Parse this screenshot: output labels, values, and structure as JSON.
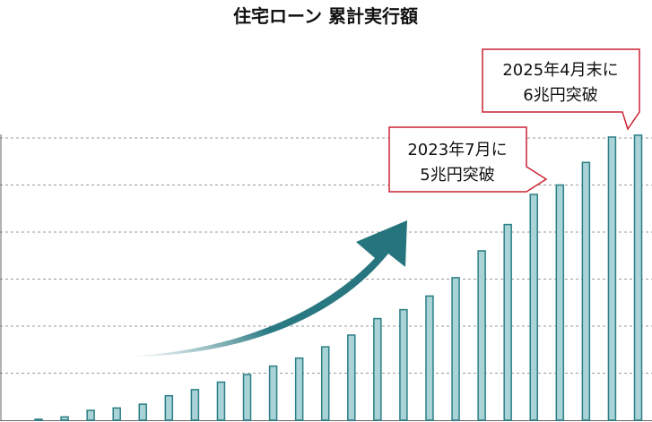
{
  "chart_data": {
    "type": "bar",
    "title": "住宅ローン 累計実行額",
    "xlabel": "",
    "ylabel": "",
    "ylim": [
      0,
      6
    ],
    "grid": true,
    "values": [
      0.02,
      0.07,
      0.21,
      0.26,
      0.34,
      0.52,
      0.65,
      0.81,
      0.97,
      1.15,
      1.32,
      1.56,
      1.81,
      2.16,
      2.35,
      2.64,
      3.03,
      3.6,
      4.16,
      4.8,
      5.0,
      5.48,
      6.02,
      6.06
    ],
    "annotations": [
      {
        "label": "callout_2023",
        "line1": "2023年7月に",
        "line2": "5兆円突破",
        "bar_index": 20
      },
      {
        "label": "callout_2025",
        "line1": "2025年4月末に",
        "line2": "6兆円突破",
        "bar_index": 23
      }
    ],
    "colors": {
      "bar_fill": "#a9d3d6",
      "bar_stroke": "#2a7f86",
      "grid": "#999999",
      "arrow": "#2a7a83",
      "callout_border": "#cc2233"
    }
  }
}
